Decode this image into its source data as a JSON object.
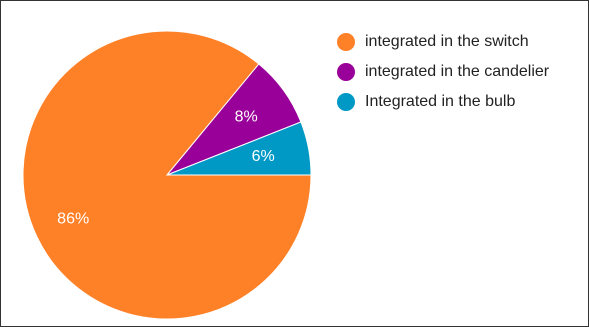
{
  "chart_data": {
    "type": "pie",
    "categories": [
      "integrated in the switch",
      "integrated in the candelier",
      "Integrated in the bulb"
    ],
    "values": [
      86,
      8,
      6
    ],
    "data_labels": [
      "86%",
      "8%",
      "6%"
    ],
    "colors": [
      "#ff8127",
      "#990099",
      "#0099c6"
    ],
    "legend_position": "right",
    "title": ""
  }
}
